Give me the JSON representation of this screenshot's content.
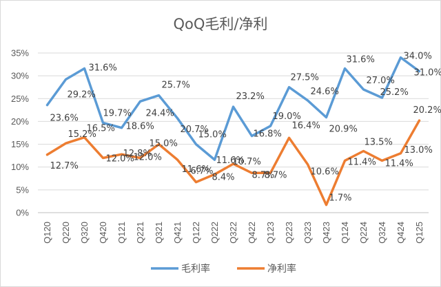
{
  "chart_data": {
    "type": "line",
    "title": "QoQ毛利/净利",
    "xlabel": "",
    "ylabel": "",
    "ylim": [
      0,
      35
    ],
    "y_ticks": [
      "0%",
      "5%",
      "10%",
      "15%",
      "20%",
      "25%",
      "30%",
      "35%"
    ],
    "grid": true,
    "legend_position": "bottom",
    "categories": [
      "Q120",
      "Q220",
      "Q320",
      "Q420",
      "Q121",
      "Q221",
      "Q321",
      "Q421",
      "Q122",
      "Q222",
      "Q322",
      "Q422",
      "Q123",
      "Q223",
      "Q323",
      "Q423",
      "Q124",
      "Q224",
      "Q324",
      "Q424",
      "Q125"
    ],
    "series": [
      {
        "name": "毛利率",
        "color": "#5b9bd5",
        "values": [
          23.6,
          29.2,
          31.6,
          19.7,
          18.6,
          24.4,
          25.7,
          20.7,
          15.0,
          11.6,
          23.2,
          16.8,
          19.0,
          27.5,
          24.6,
          20.9,
          31.6,
          27.0,
          25.2,
          34.0,
          31.0
        ],
        "labels": [
          "23.6%",
          "29.2%",
          "31.6%",
          "19.7%",
          "18.6%",
          "24.4%",
          "25.7%",
          "20.7%",
          "15.0%",
          "11.6%",
          "23.2%",
          "16.8%",
          "19.0%",
          "27.5%",
          "24.6%",
          "20.9%",
          "31.6%",
          "27.0%",
          "25.2%",
          "34.0%",
          "31.0%"
        ]
      },
      {
        "name": "净利率",
        "color": "#ed7d31",
        "values": [
          12.7,
          15.2,
          16.5,
          12.0,
          12.8,
          12.0,
          15.0,
          11.6,
          6.7,
          8.4,
          10.7,
          8.7,
          8.7,
          16.4,
          10.6,
          1.7,
          11.4,
          13.5,
          11.4,
          13.0,
          20.2
        ],
        "labels": [
          "12.7%",
          "15.2%",
          "16.5%",
          "12.0%",
          "12.8%",
          "12.0%",
          "15.0%",
          "11.6%",
          "6.7%",
          "8.4%",
          "10.7%",
          "8.7%",
          "8.7%",
          "16.4%",
          "10.6%",
          "1.7%",
          "11.4%",
          "13.5%",
          "11.4%",
          "13.0%",
          "20.2%"
        ]
      }
    ]
  }
}
